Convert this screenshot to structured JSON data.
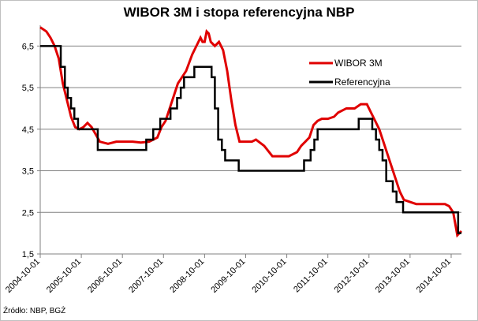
{
  "chart_data": {
    "type": "line",
    "title": "WIBOR 3M i stopa referencyjna NBP",
    "source": "Źródło: NBP, BGŻ",
    "xlabel": "",
    "ylabel": "",
    "ylim": [
      1.5,
      7.0
    ],
    "yticks": [
      1.5,
      2.5,
      3.5,
      4.5,
      5.5,
      6.5
    ],
    "ytick_labels": [
      "1,5",
      "2,5",
      "3,5",
      "4,5",
      "5,5",
      "6,5"
    ],
    "xlim": [
      2004.75,
      2015.0
    ],
    "xticks": [
      2004.75,
      2005.75,
      2006.75,
      2007.75,
      2008.75,
      2009.75,
      2010.75,
      2011.75,
      2012.75,
      2013.75,
      2014.75
    ],
    "xtick_labels": [
      "2004-10-01",
      "2005-10-01",
      "2006-10-01",
      "2007-10-01",
      "2008-10-01",
      "2009-10-01",
      "2010-10-01",
      "2011-10-01",
      "2012-10-01",
      "2013-10-01",
      "2014-10-01"
    ],
    "grid": true,
    "legend_position": "top-right",
    "series": [
      {
        "name": "WIBOR 3M",
        "color": "#e00000",
        "x": [
          2004.75,
          2004.9,
          2005.0,
          2005.1,
          2005.2,
          2005.3,
          2005.4,
          2005.5,
          2005.6,
          2005.7,
          2005.8,
          2005.9,
          2006.0,
          2006.2,
          2006.4,
          2006.6,
          2006.8,
          2007.0,
          2007.2,
          2007.4,
          2007.5,
          2007.6,
          2007.7,
          2007.8,
          2007.9,
          2008.0,
          2008.1,
          2008.2,
          2008.3,
          2008.45,
          2008.55,
          2008.65,
          2008.7,
          2008.75,
          2008.8,
          2008.85,
          2008.9,
          2009.0,
          2009.1,
          2009.2,
          2009.3,
          2009.4,
          2009.5,
          2009.6,
          2009.75,
          2009.9,
          2010.0,
          2010.2,
          2010.4,
          2010.6,
          2010.8,
          2011.0,
          2011.1,
          2011.2,
          2011.3,
          2011.4,
          2011.5,
          2011.6,
          2011.75,
          2011.9,
          2012.0,
          2012.2,
          2012.3,
          2012.4,
          2012.55,
          2012.7,
          2012.8,
          2012.9,
          2013.0,
          2013.1,
          2013.2,
          2013.3,
          2013.4,
          2013.5,
          2013.6,
          2013.75,
          2013.9,
          2014.1,
          2014.3,
          2014.5,
          2014.6,
          2014.7,
          2014.8,
          2014.9,
          2015.0
        ],
        "values": [
          6.95,
          6.85,
          6.7,
          6.5,
          6.2,
          5.6,
          5.2,
          4.8,
          4.55,
          4.5,
          4.55,
          4.65,
          4.55,
          4.2,
          4.15,
          4.2,
          4.2,
          4.2,
          4.18,
          4.2,
          4.25,
          4.3,
          4.55,
          4.7,
          5.0,
          5.3,
          5.6,
          5.75,
          5.9,
          6.3,
          6.5,
          6.7,
          6.6,
          6.6,
          6.85,
          6.8,
          6.6,
          6.5,
          6.6,
          6.4,
          5.9,
          5.2,
          4.6,
          4.2,
          4.2,
          4.2,
          4.25,
          4.1,
          3.85,
          3.85,
          3.85,
          3.95,
          4.1,
          4.2,
          4.3,
          4.6,
          4.7,
          4.75,
          4.75,
          4.8,
          4.9,
          5.0,
          5.0,
          5.0,
          5.1,
          5.1,
          4.9,
          4.7,
          4.5,
          4.2,
          3.9,
          3.6,
          3.3,
          3.0,
          2.8,
          2.75,
          2.7,
          2.7,
          2.7,
          2.7,
          2.7,
          2.65,
          2.5,
          1.95,
          2.05
        ]
      },
      {
        "name": "Referencyjna",
        "color": "#000000",
        "step": true,
        "x": [
          2004.75,
          2005.25,
          2005.35,
          2005.42,
          2005.5,
          2005.58,
          2005.67,
          2005.75,
          2006.0,
          2006.15,
          2007.0,
          2007.33,
          2007.5,
          2007.67,
          2007.92,
          2008.08,
          2008.17,
          2008.25,
          2008.5,
          2008.92,
          2009.0,
          2009.08,
          2009.17,
          2009.25,
          2009.33,
          2009.42,
          2009.58,
          2009.75,
          2011.0,
          2011.17,
          2011.33,
          2011.42,
          2011.5,
          2012.5,
          2012.83,
          2012.92,
          2013.0,
          2013.08,
          2013.17,
          2013.33,
          2013.42,
          2013.58,
          2013.75,
          2014.75,
          2014.92,
          2015.0
        ],
        "values": [
          6.5,
          6.0,
          5.5,
          5.25,
          5.0,
          4.75,
          4.5,
          4.5,
          4.5,
          4.0,
          4.0,
          4.25,
          4.5,
          4.75,
          5.0,
          5.25,
          5.5,
          5.75,
          6.0,
          5.75,
          5.0,
          4.25,
          4.0,
          3.75,
          3.75,
          3.75,
          3.5,
          3.5,
          3.5,
          3.75,
          4.0,
          4.25,
          4.5,
          4.75,
          4.5,
          4.25,
          4.0,
          3.75,
          3.25,
          3.0,
          2.75,
          2.5,
          2.5,
          2.5,
          2.0,
          2.0
        ]
      }
    ]
  }
}
